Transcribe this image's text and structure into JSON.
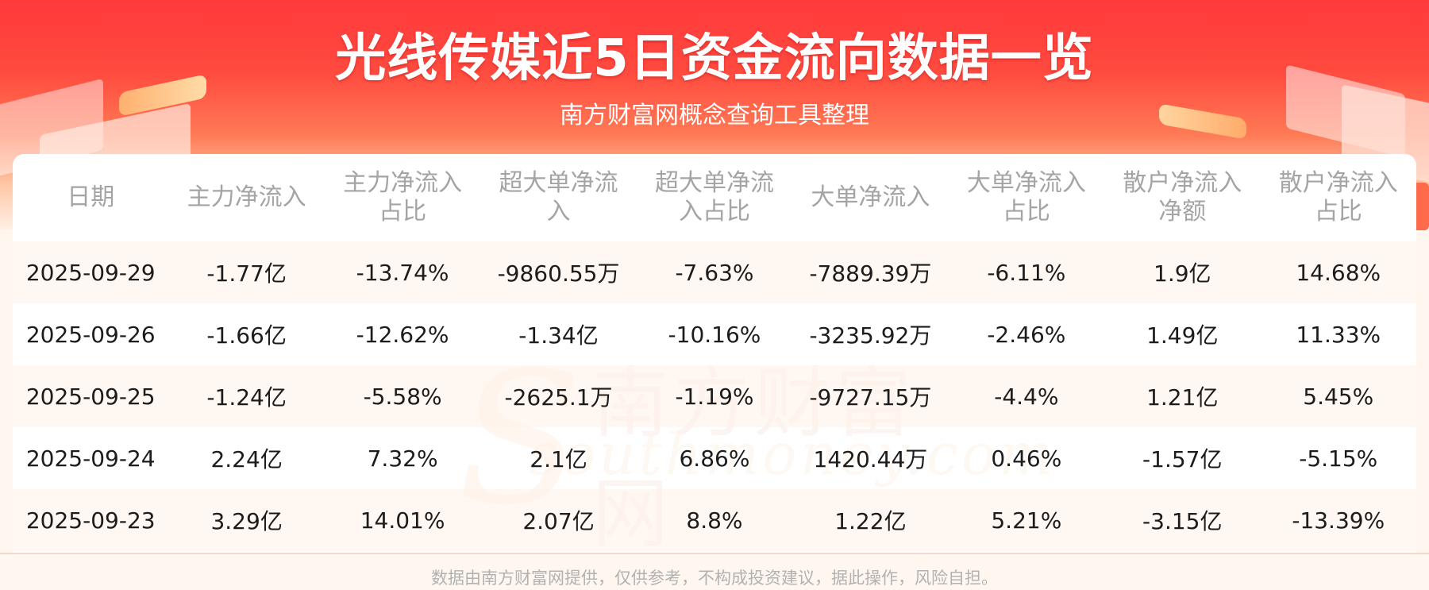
{
  "header": {
    "title": "光线传媒近5日资金流向数据一览",
    "subtitle": "南方财富网概念查询工具整理"
  },
  "watermark": {
    "cn": "南方财富网",
    "en": "southmoney.com"
  },
  "table": {
    "columns": [
      [
        "日期"
      ],
      [
        "主力净流入"
      ],
      [
        "主力净流入",
        "占比"
      ],
      [
        "超大单净流",
        "入"
      ],
      [
        "超大单净流",
        "入占比"
      ],
      [
        "大单净流入"
      ],
      [
        "大单净流入",
        "占比"
      ],
      [
        "散户净流入",
        "净额"
      ],
      [
        "散户净流入",
        "占比"
      ]
    ],
    "rows": [
      [
        "2025-09-29",
        "-1.77亿",
        "-13.74%",
        "-9860.55万",
        "-7.63%",
        "-7889.39万",
        "-6.11%",
        "1.9亿",
        "14.68%"
      ],
      [
        "2025-09-26",
        "-1.66亿",
        "-12.62%",
        "-1.34亿",
        "-10.16%",
        "-3235.92万",
        "-2.46%",
        "1.49亿",
        "11.33%"
      ],
      [
        "2025-09-25",
        "-1.24亿",
        "-5.58%",
        "-2625.1万",
        "-1.19%",
        "-9727.15万",
        "-4.4%",
        "1.21亿",
        "5.45%"
      ],
      [
        "2025-09-24",
        "2.24亿",
        "7.32%",
        "2.1亿",
        "6.86%",
        "1420.44万",
        "0.46%",
        "-1.57亿",
        "-5.15%"
      ],
      [
        "2025-09-23",
        "3.29亿",
        "14.01%",
        "2.07亿",
        "8.8%",
        "1.22亿",
        "5.21%",
        "-3.15亿",
        "-13.39%"
      ]
    ]
  },
  "footer": {
    "disclaimer": "数据由南方财富网提供，仅供参考，不构成投资建议，据此操作，风险自担。"
  },
  "colors": {
    "banner_red": "#ff3a3c",
    "header_text": "#a4a4a4",
    "cell_text": "#1c1c1c",
    "stripe": "#fff6ef"
  }
}
